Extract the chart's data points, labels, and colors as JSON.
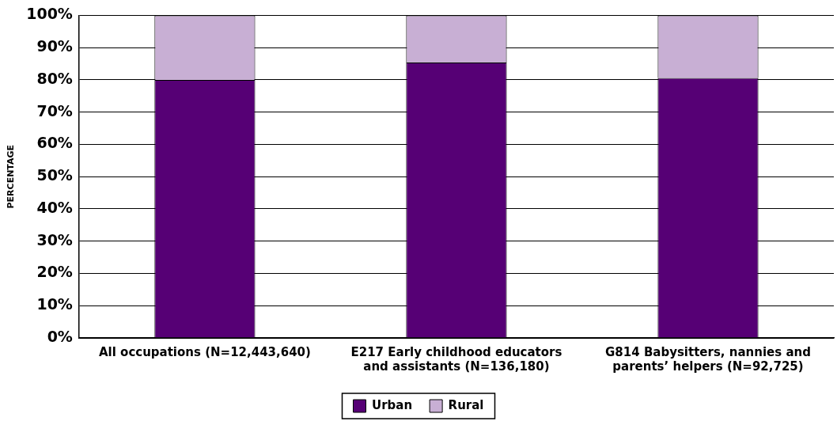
{
  "chart_data": {
    "type": "bar",
    "stacked": true,
    "ylabel": "PERCENTAGE",
    "categories": [
      "All occupations (N=12,443,640)",
      "E217 Early childhood educators and assistants (N=136,180)",
      "G814 Babysitters, nannies and parents’ helpers (N=92,725)"
    ],
    "series": [
      {
        "name": "Urban",
        "color": "#560075",
        "values": [
          80.0,
          85.4,
          80.6
        ]
      },
      {
        "name": "Rural",
        "color": "#c8afd4",
        "values": [
          20.0,
          14.6,
          19.4
        ]
      }
    ],
    "ylim": [
      0,
      100
    ],
    "yticks": [
      {
        "value": 0,
        "label": "0%"
      },
      {
        "value": 10,
        "label": "10%"
      },
      {
        "value": 20,
        "label": "20%"
      },
      {
        "value": 30,
        "label": "30%"
      },
      {
        "value": 40,
        "label": "40%"
      },
      {
        "value": 50,
        "label": "50%"
      },
      {
        "value": 60,
        "label": "60%"
      },
      {
        "value": 70,
        "label": "70%"
      },
      {
        "value": 80,
        "label": "80%"
      },
      {
        "value": 90,
        "label": "90%"
      },
      {
        "value": 100,
        "label": "100%"
      }
    ],
    "grid": "y",
    "legend": "bottom"
  }
}
